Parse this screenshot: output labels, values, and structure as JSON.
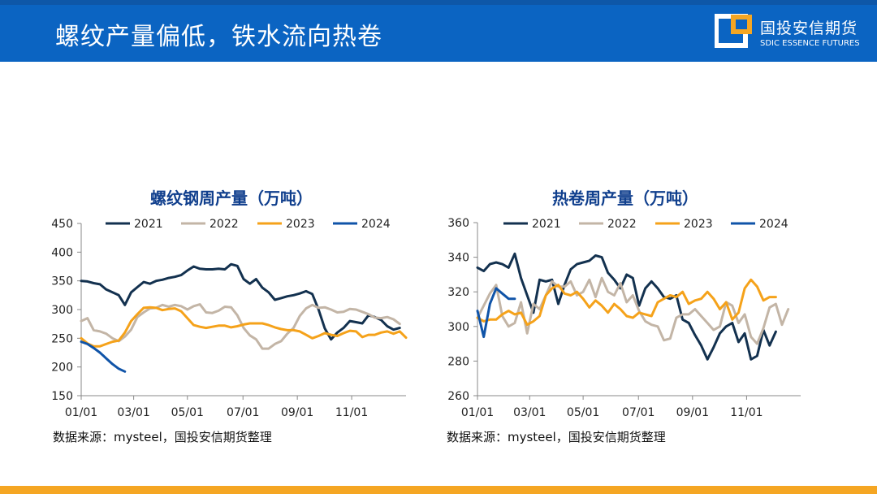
{
  "slide": {
    "title": "螺纹产量偏低，铁水流向热卷",
    "logo_cn": "国投安信期货",
    "logo_en": "SDIC ESSENCE FUTURES"
  },
  "colors": {
    "header": "#0b64c2",
    "footer": "#f5a623",
    "chart_title": "#103f8d"
  },
  "chart_data": [
    {
      "type": "line",
      "title": "螺纹钢周产量（万吨）",
      "source": "数据来源：mysteel，国投安信期货整理",
      "x_ticks": [
        "01/01",
        "03/01",
        "05/01",
        "07/01",
        "09/01",
        "11/01"
      ],
      "x_tick_weeks": [
        0,
        8.4,
        17,
        25.9,
        34.6,
        43.3
      ],
      "xlim": [
        0,
        52
      ],
      "ylim": [
        150,
        450
      ],
      "y_ticks": [
        150,
        200,
        250,
        300,
        350,
        400,
        450
      ],
      "grid": false,
      "legend": "top",
      "series": [
        {
          "name": "2021",
          "color": "#13314f",
          "start_week": 0,
          "values": [
            350,
            349,
            346,
            344,
            335,
            330,
            325,
            308,
            330,
            339,
            348,
            345,
            350,
            352,
            355,
            357,
            360,
            368,
            375,
            371,
            370,
            370,
            371,
            370,
            379,
            376,
            353,
            345,
            353,
            338,
            330,
            317,
            320,
            323,
            325,
            328,
            332,
            327,
            300,
            267,
            248,
            260,
            268,
            280,
            278,
            276,
            290,
            287,
            282,
            271,
            265,
            268
          ]
        },
        {
          "name": "2022",
          "color": "#c3b5a6",
          "start_week": 0,
          "values": [
            280,
            285,
            264,
            262,
            258,
            250,
            245,
            253,
            265,
            287,
            295,
            302,
            303,
            308,
            305,
            308,
            306,
            300,
            306,
            309,
            295,
            294,
            298,
            305,
            304,
            290,
            268,
            255,
            248,
            232,
            232,
            240,
            245,
            258,
            268,
            289,
            302,
            308,
            303,
            304,
            300,
            295,
            296,
            301,
            300,
            296,
            292,
            286,
            285,
            287,
            283,
            275
          ]
        },
        {
          "name": "2023",
          "color": "#f5a21a",
          "start_week": 0,
          "values": [
            250,
            241,
            236,
            236,
            240,
            244,
            246,
            260,
            280,
            292,
            303,
            304,
            303,
            299,
            301,
            302,
            297,
            285,
            273,
            270,
            268,
            270,
            272,
            272,
            269,
            271,
            274,
            276,
            276,
            276,
            273,
            269,
            266,
            264,
            264,
            262,
            256,
            250,
            254,
            259,
            256,
            254,
            259,
            263,
            262,
            252,
            256,
            256,
            260,
            262,
            258,
            262,
            251
          ]
        },
        {
          "name": "2024",
          "color": "#1054a8",
          "start_week": 0,
          "values": [
            244,
            240,
            233,
            225,
            215,
            205,
            197,
            192
          ]
        }
      ]
    },
    {
      "type": "line",
      "title": "热卷周产量（万吨）",
      "source": "数据来源：mysteel，国投安信期货整理",
      "x_ticks": [
        "01/01",
        "03/01",
        "05/01",
        "07/01",
        "09/01",
        "11/01"
      ],
      "x_tick_weeks": [
        0,
        8.4,
        17,
        25.9,
        34.6,
        43.3
      ],
      "xlim": [
        0,
        52
      ],
      "ylim": [
        260,
        360
      ],
      "y_ticks": [
        260,
        280,
        300,
        320,
        340,
        360
      ],
      "grid": false,
      "legend": "top",
      "series": [
        {
          "name": "2021",
          "color": "#13314f",
          "start_week": 0,
          "values": [
            334,
            332,
            336,
            337,
            336,
            334,
            342,
            328,
            318,
            308,
            327,
            326,
            327,
            313,
            324,
            333,
            336,
            337,
            338,
            341,
            340,
            331,
            327,
            322,
            330,
            328,
            312,
            322,
            326,
            322,
            317,
            316,
            318,
            304,
            302,
            295,
            289,
            281,
            288,
            296,
            300,
            302,
            291,
            296,
            281,
            283,
            298,
            289,
            297
          ]
        },
        {
          "name": "2022",
          "color": "#c3b5a6",
          "start_week": 0,
          "values": [
            305,
            312,
            319,
            324,
            306,
            300,
            302,
            314,
            296,
            313,
            310,
            318,
            326,
            323,
            323,
            326,
            318,
            320,
            327,
            317,
            328,
            320,
            318,
            325,
            314,
            318,
            309,
            303,
            301,
            300,
            292,
            293,
            305,
            307,
            307,
            310,
            306,
            302,
            298,
            300,
            314,
            312,
            302,
            307,
            294,
            290,
            299,
            311,
            313,
            301,
            310
          ]
        },
        {
          "name": "2023",
          "color": "#f5a21a",
          "start_week": 0,
          "values": [
            305,
            303,
            304,
            304,
            307,
            309,
            307,
            308,
            301,
            303,
            306,
            318,
            322,
            324,
            319,
            318,
            320,
            316,
            311,
            315,
            312,
            308,
            313,
            310,
            306,
            305,
            308,
            307,
            306,
            314,
            316,
            318,
            317,
            320,
            313,
            315,
            316,
            320,
            316,
            310,
            314,
            304,
            308,
            322,
            327,
            323,
            315,
            317,
            317
          ]
        },
        {
          "name": "2024",
          "color": "#1054a8",
          "start_week": 0,
          "values": [
            309,
            294,
            313,
            322,
            319,
            316,
            316
          ]
        }
      ]
    }
  ]
}
